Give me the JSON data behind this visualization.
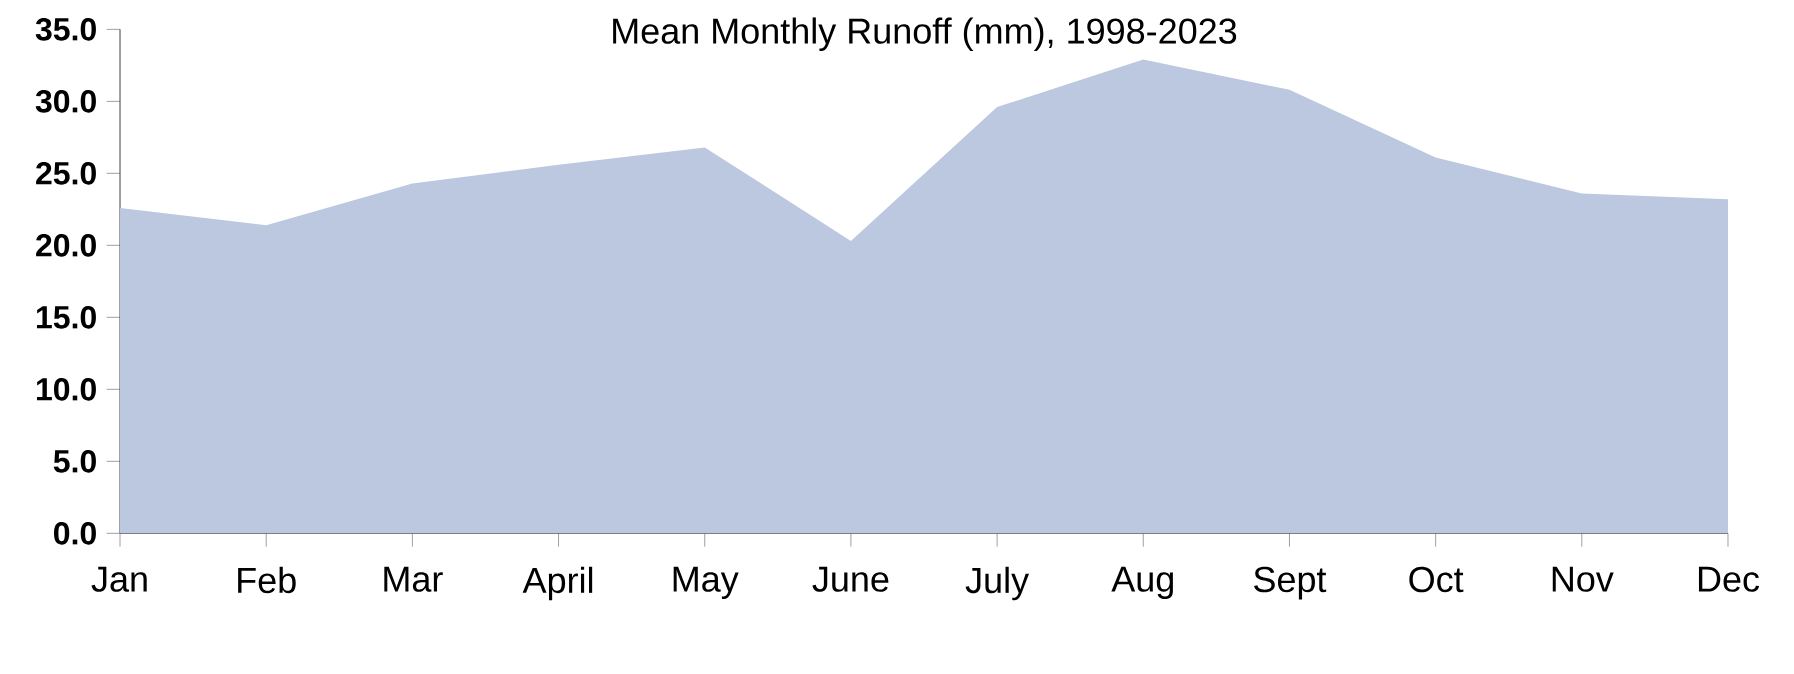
{
  "chart_data": {
    "type": "area",
    "title": "Mean Monthly Runoff (mm), 1998-2023",
    "categories": [
      "Jan",
      "Feb",
      "Mar",
      "April",
      "May",
      "June",
      "July",
      "Aug",
      "Sept",
      "Oct",
      "Nov",
      "Dec"
    ],
    "values": [
      22.6,
      21.4,
      24.3,
      25.6,
      26.8,
      20.3,
      29.6,
      32.9,
      30.8,
      26.1,
      23.6,
      23.2
    ],
    "color": "#bcc8e0",
    "ylim": [
      0,
      35
    ],
    "yticks": [
      {
        "value": 0,
        "label": "0.0"
      },
      {
        "value": 5,
        "label": "5.0"
      },
      {
        "value": 10,
        "label": "10.0"
      },
      {
        "value": 15,
        "label": "15.0"
      },
      {
        "value": 20,
        "label": "20.0"
      },
      {
        "value": 25,
        "label": "25.0"
      },
      {
        "value": 30,
        "label": "30.0"
      },
      {
        "value": 35,
        "label": "35.0"
      }
    ]
  }
}
